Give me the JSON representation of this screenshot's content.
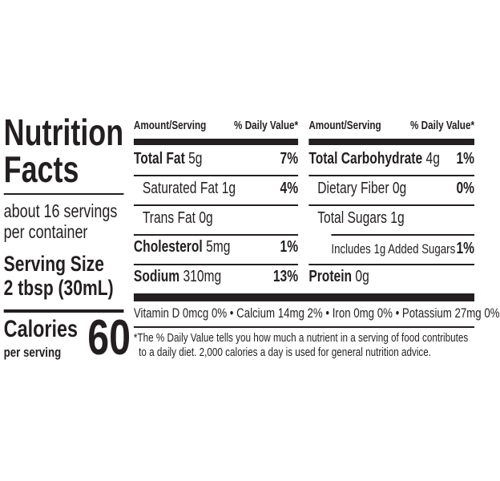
{
  "title_line1": "Nutrition",
  "title_line2": "Facts",
  "servings_line1": "about 16 servings",
  "servings_line2": "per container",
  "serving_size_label": "Serving Size",
  "serving_size_value": "2 tbsp (30mL)",
  "calories_label": "Calories",
  "calories_sub": "per serving",
  "calories_value": "60",
  "header": {
    "amount": "Amount/Serving",
    "dv": "% Daily Value*"
  },
  "left_nutrients": [
    {
      "name": "Total Fat",
      "amount": "5g",
      "dv": "7%"
    },
    {
      "name": "Saturated Fat 1g",
      "amount": "",
      "dv": "4%"
    },
    {
      "name": "Trans Fat 0g",
      "amount": "",
      "dv": ""
    },
    {
      "name": "Cholesterol",
      "amount": "5mg",
      "dv": "1%"
    },
    {
      "name": "Sodium",
      "amount": "310mg",
      "dv": "13%"
    }
  ],
  "right_nutrients": [
    {
      "name": "Total Carbohydrate",
      "amount": "4g",
      "dv": "1%"
    },
    {
      "name": "Dietary Fiber 0g",
      "amount": "",
      "dv": "0%"
    },
    {
      "name": "Total Sugars 1g",
      "amount": "",
      "dv": ""
    },
    {
      "name": "Includes 1g Added Sugars",
      "amount": "",
      "dv": "1%"
    },
    {
      "name": "Protein",
      "amount": "0g",
      "dv": ""
    }
  ],
  "vitamins": "Vitamin D 0mcg 0% • Calcium 14mg 2% • Iron 0mg 0% • Potassium 27mg 0%",
  "footnote_line1": "*The % Daily Value tells you how much a nutrient in a serving of food contributes",
  "footnote_line2": "to a daily diet. 2,000 calories a day is used for general nutrition advice."
}
